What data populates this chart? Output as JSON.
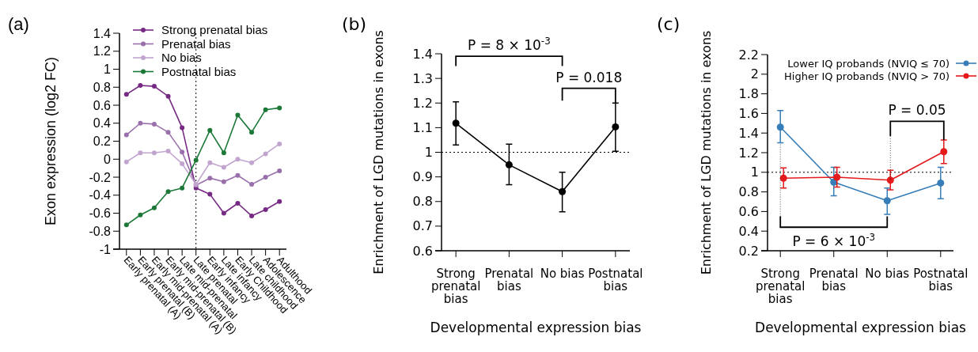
{
  "chart_data": [
    {
      "type": "line",
      "title": "(a)",
      "ylabel": "Exon expression (log2 FC)",
      "categories": [
        "Early prenatal (A)",
        "Early prenatal (B)",
        "Early mid-prenatal (A)",
        "Early mid-prenatal (B)",
        "Late mid-prenatal",
        "Late prenatal",
        "Early infancy",
        "Late infancy",
        "Early Childhood",
        "Late childhood",
        "Adolescence",
        "Adulthood"
      ],
      "ylim": [
        -1,
        1.4
      ],
      "yticks": [
        -1,
        -0.8,
        -0.6,
        -0.4,
        -0.2,
        0,
        0.2,
        0.4,
        0.6,
        0.8,
        1,
        1.2,
        1.4
      ],
      "series": [
        {
          "name": "Strong prenatal bias",
          "color": "#762a83",
          "values": [
            0.72,
            0.82,
            0.81,
            0.7,
            0.35,
            -0.32,
            -0.39,
            -0.6,
            -0.49,
            -0.63,
            -0.56,
            -0.47
          ]
        },
        {
          "name": "Prenatal bias",
          "color": "#9970ab",
          "values": [
            0.27,
            0.4,
            0.39,
            0.3,
            0.08,
            -0.29,
            -0.21,
            -0.25,
            -0.18,
            -0.28,
            -0.2,
            -0.13
          ]
        },
        {
          "name": "No bias",
          "color": "#c2a5cf",
          "values": [
            -0.03,
            0.07,
            0.07,
            0.09,
            -0.05,
            -0.28,
            -0.04,
            -0.09,
            0,
            -0.04,
            0.06,
            0.17
          ]
        },
        {
          "name": "Postnatal bias",
          "color": "#1b7837",
          "values": [
            -0.73,
            -0.62,
            -0.54,
            -0.36,
            -0.32,
            -0.01,
            0.32,
            0.07,
            0.49,
            0.3,
            0.55,
            0.57
          ]
        }
      ],
      "ref_lines": [
        {
          "axis": "x",
          "value": "Late prenatal",
          "color": "#000000",
          "line_style": "dotted"
        }
      ],
      "marker": "circle",
      "line_style": "solid",
      "legend": "top"
    },
    {
      "type": "line",
      "title": "(b)",
      "xlabel": "Developmental expression bias",
      "ylabel": "Enrichment of LGD mutations in exons",
      "categories": [
        "Strong prenatal bias",
        "Prenatal bias",
        "No bias",
        "Postnatal bias"
      ],
      "ylim": [
        0.6,
        1.4
      ],
      "yticks": [
        0.6,
        0.7,
        0.8,
        0.9,
        1,
        1.1,
        1.2,
        1.3,
        1.4
      ],
      "series": [
        {
          "color": "#000000",
          "values": [
            1.118,
            0.949,
            0.84,
            1.103
          ],
          "errors": [
            [
              1.03,
              1.205
            ],
            [
              0.868,
              1.033
            ],
            [
              0.758,
              0.919
            ],
            [
              1.004,
              1.2
            ]
          ]
        }
      ],
      "ref_lines": [
        {
          "axis": "y",
          "value": 1,
          "color": "#000000",
          "line_style": "dotted"
        }
      ],
      "annotations": [
        "P = 8 × 10$^{-3}$",
        "P = 0.018"
      ],
      "marker": "circle",
      "line_style": "solid"
    },
    {
      "type": "line",
      "title": "(c)",
      "xlabel": "Developmental expression bias",
      "ylabel": "Enrichment of LGD mutations in exons",
      "categories": [
        "Strong prenatal bias",
        "Prenatal bias",
        "No bias",
        "Postnatal bias"
      ],
      "ylim": [
        0.2,
        2.2
      ],
      "yticks": [
        0.2,
        0.4,
        0.6,
        0.8,
        1,
        1.2,
        1.4,
        1.6,
        1.8,
        2,
        2.2
      ],
      "series": [
        {
          "name": "Lower IQ probands (NVIQ ≤ 70)",
          "color": "#377eb8",
          "values": [
            1.46,
            0.9,
            0.71,
            0.89
          ],
          "errors": [
            [
              1.3,
              1.63
            ],
            [
              0.76,
              1.05
            ],
            [
              0.57,
              0.84
            ],
            [
              0.73,
              1.05
            ]
          ]
        },
        {
          "name": "Higher IQ probands (NVIQ > 70)",
          "color": "#e41a1c",
          "values": [
            0.94,
            0.95,
            0.92,
            1.21
          ],
          "errors": [
            [
              0.84,
              1.045
            ],
            [
              0.85,
              1.05
            ],
            [
              0.82,
              1.02
            ],
            [
              1.09,
              1.33
            ]
          ]
        }
      ],
      "ref_lines": [
        {
          "axis": "y",
          "value": 1,
          "color": "#000000",
          "line_style": "dotted"
        }
      ],
      "annotations": [
        "P = 0.05",
        "P = 6 × 10$^{-3}$"
      ],
      "marker": "circle",
      "line_style": "solid",
      "legend": "top right"
    }
  ]
}
